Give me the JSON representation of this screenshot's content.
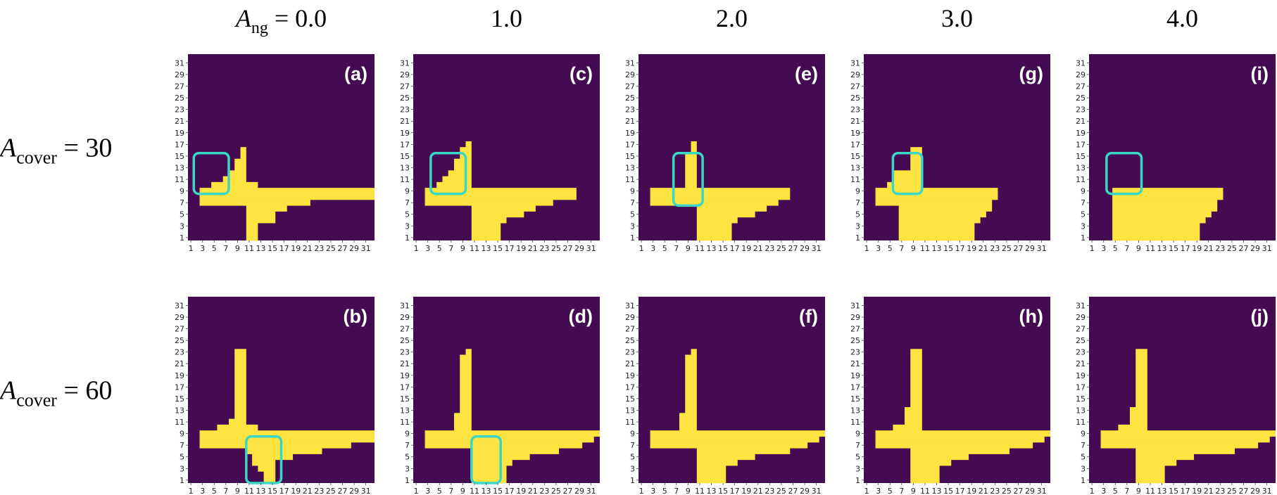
{
  "colors": {
    "background": "#440a52",
    "fill": "#fde440",
    "highlight": "#3ad7c6"
  },
  "columns": [
    {
      "prefix": "A",
      "sub": "ng",
      "eq": " = ",
      "value": "0.0"
    },
    {
      "prefix": "",
      "sub": "",
      "eq": "",
      "value": "1.0"
    },
    {
      "prefix": "",
      "sub": "",
      "eq": "",
      "value": "2.0"
    },
    {
      "prefix": "",
      "sub": "",
      "eq": "",
      "value": "3.0"
    },
    {
      "prefix": "",
      "sub": "",
      "eq": "",
      "value": "4.0"
    }
  ],
  "rows": [
    {
      "prefix": "A",
      "sub": "cover",
      "eq": " = ",
      "value": "30"
    },
    {
      "prefix": "A",
      "sub": "cover",
      "eq": " = ",
      "value": "60"
    }
  ],
  "chart_data": {
    "type": "heatmap",
    "grid_size": 32,
    "x_ticks": [
      "1",
      "3",
      "5",
      "7",
      "9",
      "11",
      "13",
      "15",
      "17",
      "19",
      "21",
      "23",
      "25",
      "27",
      "29",
      "31"
    ],
    "y_ticks": [
      "1",
      "3",
      "5",
      "7",
      "9",
      "11",
      "13",
      "15",
      "17",
      "19",
      "21",
      "23",
      "25",
      "27",
      "29",
      "31"
    ],
    "panels": [
      {
        "label": "(a)",
        "row": 0,
        "col": 0,
        "runs": [
          [
            1,
            11,
            12
          ],
          [
            2,
            11,
            12
          ],
          [
            3,
            11,
            12
          ],
          [
            4,
            11,
            15
          ],
          [
            5,
            11,
            15
          ],
          [
            6,
            11,
            17
          ],
          [
            7,
            3,
            21
          ],
          [
            8,
            3,
            32
          ],
          [
            9,
            3,
            32
          ],
          [
            10,
            5,
            12
          ],
          [
            11,
            7,
            10
          ],
          [
            12,
            8,
            10
          ],
          [
            13,
            9,
            10
          ],
          [
            14,
            9,
            10
          ],
          [
            15,
            10,
            10
          ],
          [
            16,
            10,
            10
          ]
        ],
        "highlight": {
          "x1": 2,
          "x2": 7,
          "y1": 9,
          "y2": 15
        }
      },
      {
        "label": "(b)",
        "row": 1,
        "col": 0,
        "runs": [
          [
            1,
            14,
            15
          ],
          [
            2,
            14,
            15
          ],
          [
            3,
            13,
            15
          ],
          [
            4,
            12,
            15
          ],
          [
            5,
            12,
            18
          ],
          [
            6,
            11,
            23
          ],
          [
            7,
            3,
            28
          ],
          [
            8,
            3,
            32
          ],
          [
            9,
            3,
            32
          ],
          [
            10,
            6,
            12
          ],
          [
            11,
            8,
            10
          ],
          [
            12,
            9,
            10
          ],
          [
            13,
            9,
            10
          ],
          [
            14,
            9,
            10
          ],
          [
            15,
            9,
            10
          ],
          [
            16,
            9,
            10
          ],
          [
            17,
            9,
            10
          ],
          [
            18,
            9,
            10
          ],
          [
            19,
            9,
            10
          ],
          [
            20,
            9,
            10
          ],
          [
            21,
            9,
            10
          ],
          [
            22,
            9,
            10
          ],
          [
            23,
            9,
            10
          ]
        ],
        "highlight": {
          "x1": 11,
          "x2": 16,
          "y1": 1,
          "y2": 8
        }
      },
      {
        "label": "(c)",
        "row": 0,
        "col": 1,
        "runs": [
          [
            1,
            11,
            15
          ],
          [
            2,
            11,
            15
          ],
          [
            3,
            11,
            15
          ],
          [
            4,
            11,
            16
          ],
          [
            5,
            11,
            19
          ],
          [
            6,
            11,
            21
          ],
          [
            7,
            3,
            24
          ],
          [
            8,
            3,
            28
          ],
          [
            9,
            3,
            28
          ],
          [
            10,
            5,
            10
          ],
          [
            11,
            6,
            10
          ],
          [
            12,
            7,
            10
          ],
          [
            13,
            8,
            10
          ],
          [
            14,
            8,
            10
          ],
          [
            15,
            9,
            10
          ],
          [
            16,
            9,
            10
          ],
          [
            17,
            10,
            10
          ]
        ],
        "highlight": {
          "x1": 4,
          "x2": 9,
          "y1": 9,
          "y2": 15
        }
      },
      {
        "label": "(d)",
        "row": 1,
        "col": 1,
        "runs": [
          [
            1,
            11,
            16
          ],
          [
            2,
            11,
            16
          ],
          [
            3,
            11,
            16
          ],
          [
            4,
            11,
            17
          ],
          [
            5,
            11,
            20
          ],
          [
            6,
            11,
            25
          ],
          [
            7,
            3,
            29
          ],
          [
            8,
            3,
            31
          ],
          [
            9,
            3,
            32
          ],
          [
            10,
            8,
            10
          ],
          [
            11,
            8,
            10
          ],
          [
            12,
            8,
            10
          ],
          [
            13,
            9,
            10
          ],
          [
            14,
            9,
            10
          ],
          [
            15,
            9,
            10
          ],
          [
            16,
            9,
            10
          ],
          [
            17,
            9,
            10
          ],
          [
            18,
            9,
            10
          ],
          [
            19,
            9,
            10
          ],
          [
            20,
            9,
            10
          ],
          [
            21,
            9,
            10
          ],
          [
            22,
            9,
            10
          ],
          [
            23,
            10,
            10
          ]
        ],
        "highlight": {
          "x1": 11,
          "x2": 15,
          "y1": 1,
          "y2": 8
        }
      },
      {
        "label": "(e)",
        "row": 0,
        "col": 2,
        "runs": [
          [
            1,
            11,
            16
          ],
          [
            2,
            11,
            16
          ],
          [
            3,
            11,
            16
          ],
          [
            4,
            11,
            17
          ],
          [
            5,
            11,
            20
          ],
          [
            6,
            11,
            22
          ],
          [
            7,
            3,
            24
          ],
          [
            8,
            3,
            26
          ],
          [
            9,
            3,
            26
          ],
          [
            10,
            9,
            10
          ],
          [
            11,
            9,
            10
          ],
          [
            12,
            9,
            10
          ],
          [
            13,
            9,
            10
          ],
          [
            14,
            9,
            10
          ],
          [
            15,
            9,
            10
          ],
          [
            16,
            10,
            10
          ],
          [
            17,
            10,
            10
          ]
        ],
        "highlight": {
          "x1": 7,
          "x2": 11,
          "y1": 7,
          "y2": 15
        }
      },
      {
        "label": "(f)",
        "row": 1,
        "col": 2,
        "runs": [
          [
            1,
            11,
            15
          ],
          [
            2,
            11,
            15
          ],
          [
            3,
            11,
            15
          ],
          [
            4,
            11,
            17
          ],
          [
            5,
            11,
            20
          ],
          [
            6,
            11,
            26
          ],
          [
            7,
            3,
            29
          ],
          [
            8,
            3,
            31
          ],
          [
            9,
            3,
            32
          ],
          [
            10,
            8,
            10
          ],
          [
            11,
            8,
            10
          ],
          [
            12,
            8,
            10
          ],
          [
            13,
            9,
            10
          ],
          [
            14,
            9,
            10
          ],
          [
            15,
            9,
            10
          ],
          [
            16,
            9,
            10
          ],
          [
            17,
            9,
            10
          ],
          [
            18,
            9,
            10
          ],
          [
            19,
            9,
            10
          ],
          [
            20,
            9,
            10
          ],
          [
            21,
            9,
            10
          ],
          [
            22,
            9,
            10
          ],
          [
            23,
            10,
            10
          ]
        ],
        "highlight": null
      },
      {
        "label": "(g)",
        "row": 0,
        "col": 3,
        "runs": [
          [
            1,
            7,
            19
          ],
          [
            2,
            7,
            19
          ],
          [
            3,
            7,
            19
          ],
          [
            4,
            7,
            20
          ],
          [
            5,
            7,
            21
          ],
          [
            6,
            7,
            22
          ],
          [
            7,
            3,
            22
          ],
          [
            8,
            3,
            23
          ],
          [
            9,
            3,
            23
          ],
          [
            10,
            5,
            10
          ],
          [
            11,
            6,
            10
          ],
          [
            12,
            6,
            10
          ],
          [
            13,
            9,
            10
          ],
          [
            14,
            9,
            10
          ],
          [
            15,
            9,
            10
          ],
          [
            16,
            9,
            10
          ]
        ],
        "highlight": {
          "x1": 6,
          "x2": 10,
          "y1": 9,
          "y2": 15
        }
      },
      {
        "label": "(h)",
        "row": 1,
        "col": 3,
        "runs": [
          [
            1,
            9,
            13
          ],
          [
            2,
            9,
            13
          ],
          [
            3,
            9,
            13
          ],
          [
            4,
            9,
            15
          ],
          [
            5,
            9,
            18
          ],
          [
            6,
            9,
            25
          ],
          [
            7,
            3,
            29
          ],
          [
            8,
            3,
            31
          ],
          [
            9,
            3,
            32
          ],
          [
            10,
            6,
            10
          ],
          [
            11,
            8,
            10
          ],
          [
            12,
            8,
            10
          ],
          [
            13,
            8,
            10
          ],
          [
            14,
            9,
            10
          ],
          [
            15,
            9,
            10
          ],
          [
            16,
            9,
            10
          ],
          [
            17,
            9,
            10
          ],
          [
            18,
            9,
            10
          ],
          [
            19,
            9,
            10
          ],
          [
            20,
            9,
            10
          ],
          [
            21,
            9,
            10
          ],
          [
            22,
            9,
            10
          ],
          [
            23,
            9,
            10
          ]
        ],
        "highlight": null
      },
      {
        "label": "(i)",
        "row": 0,
        "col": 4,
        "runs": [
          [
            1,
            5,
            19
          ],
          [
            2,
            5,
            19
          ],
          [
            3,
            5,
            19
          ],
          [
            4,
            5,
            20
          ],
          [
            5,
            5,
            21
          ],
          [
            6,
            5,
            22
          ],
          [
            7,
            5,
            22
          ],
          [
            8,
            5,
            23
          ],
          [
            9,
            5,
            23
          ]
        ],
        "highlight": {
          "x1": 4,
          "x2": 9,
          "y1": 9,
          "y2": 15
        }
      },
      {
        "label": "(j)",
        "row": 1,
        "col": 4,
        "runs": [
          [
            1,
            9,
            13
          ],
          [
            2,
            9,
            13
          ],
          [
            3,
            9,
            13
          ],
          [
            4,
            9,
            15
          ],
          [
            5,
            9,
            18
          ],
          [
            6,
            9,
            25
          ],
          [
            7,
            3,
            29
          ],
          [
            8,
            3,
            31
          ],
          [
            9,
            3,
            32
          ],
          [
            10,
            6,
            10
          ],
          [
            11,
            8,
            10
          ],
          [
            12,
            8,
            10
          ],
          [
            13,
            8,
            10
          ],
          [
            14,
            9,
            10
          ],
          [
            15,
            9,
            10
          ],
          [
            16,
            9,
            10
          ],
          [
            17,
            9,
            10
          ],
          [
            18,
            9,
            10
          ],
          [
            19,
            9,
            10
          ],
          [
            20,
            9,
            10
          ],
          [
            21,
            9,
            10
          ],
          [
            22,
            9,
            10
          ],
          [
            23,
            9,
            10
          ]
        ],
        "highlight": null
      }
    ]
  }
}
